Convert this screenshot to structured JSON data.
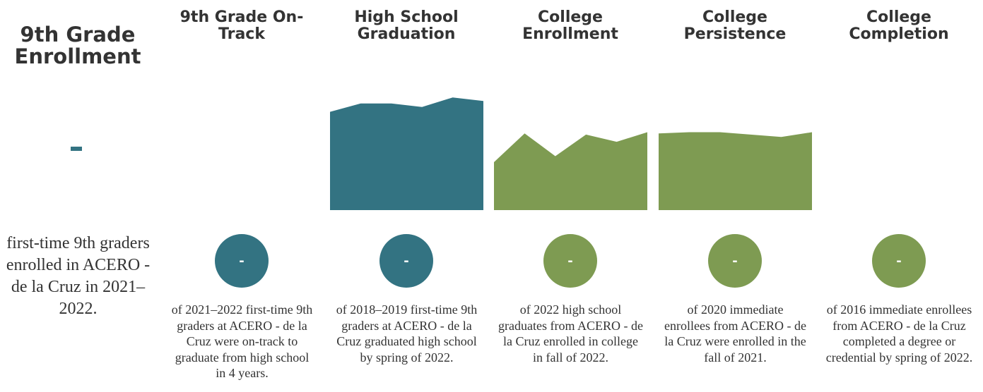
{
  "colors": {
    "teal": "#337382",
    "green": "#7e9b52",
    "text": "#333333"
  },
  "enrollment": {
    "title": "9th Grade Enrollment",
    "value": "-",
    "description": "first-time 9th graders enrolled in ACERO - de la Cruz in 2021–2022."
  },
  "metrics": [
    {
      "title": "9th Grade On-Track",
      "value": "-",
      "color": "#337382",
      "description": "of 2021–2022 first-time 9th graders at ACERO - de la Cruz were on-track to graduate from high school in 4 years."
    },
    {
      "title": "High School Graduation",
      "value": "-",
      "color": "#337382",
      "description": "of 2018–2019 first-time 9th graders at ACERO - de la Cruz graduated high school by spring of 2022."
    },
    {
      "title": "College Enrollment",
      "value": "-",
      "color": "#7e9b52",
      "description": "of 2022 high school graduates from ACERO - de la Cruz enrolled in college in fall of 2022."
    },
    {
      "title": "College Persistence",
      "value": "-",
      "color": "#7e9b52",
      "description": "of 2020 immediate enrollees from ACERO - de la Cruz were enrolled in the fall of 2021."
    },
    {
      "title": "College Completion",
      "value": "-",
      "color": "#7e9b52",
      "description": "of 2016 immediate enrollees from ACERO - de la Cruz completed a degree or credential by spring of 2022."
    }
  ],
  "chart_data": [
    {
      "type": "area",
      "metric": "9th Grade On-Track",
      "values": [],
      "ylim": [
        0,
        100
      ],
      "color": "#337382"
    },
    {
      "type": "area",
      "metric": "High School Graduation",
      "values": [
        82,
        89,
        89,
        86,
        94,
        91
      ],
      "ylim": [
        0,
        100
      ],
      "color": "#337382"
    },
    {
      "type": "area",
      "metric": "College Enrollment",
      "values": [
        40,
        64,
        45,
        63,
        57,
        65
      ],
      "ylim": [
        0,
        100
      ],
      "color": "#7e9b52"
    },
    {
      "type": "area",
      "metric": "College Persistence",
      "values": [
        64,
        65,
        65,
        63,
        61,
        65
      ],
      "ylim": [
        0,
        100
      ],
      "color": "#7e9b52"
    },
    {
      "type": "area",
      "metric": "College Completion",
      "values": [],
      "ylim": [
        0,
        100
      ],
      "color": "#7e9b52"
    }
  ]
}
